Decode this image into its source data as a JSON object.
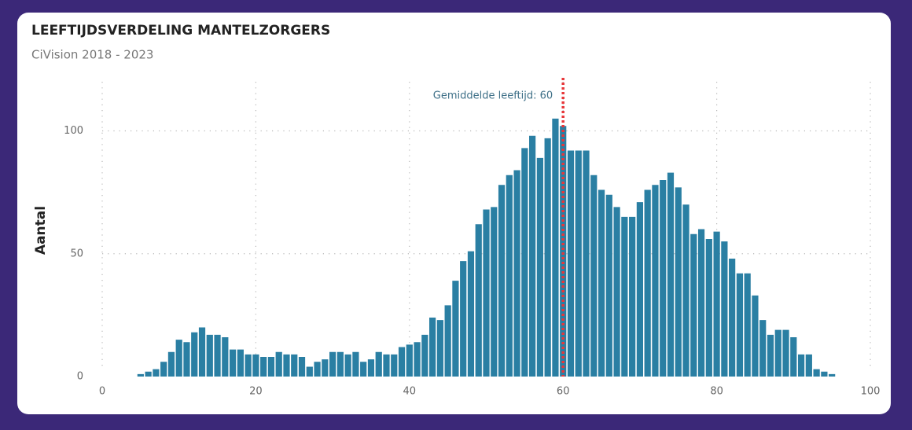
{
  "chart_data": {
    "type": "bar",
    "title": "LEEFTIJDSVERDELING MANTELZORGERS",
    "subtitle": "CiVision 2018 - 2023",
    "y_label": "Aantal",
    "color": "#2a7fa3",
    "x": [
      5,
      6,
      7,
      8,
      9,
      10,
      11,
      12,
      13,
      14,
      15,
      16,
      17,
      18,
      19,
      20,
      21,
      22,
      23,
      24,
      25,
      26,
      27,
      28,
      29,
      30,
      31,
      32,
      33,
      34,
      35,
      36,
      37,
      38,
      39,
      40,
      41,
      42,
      43,
      44,
      45,
      46,
      47,
      48,
      49,
      50,
      51,
      52,
      53,
      54,
      55,
      56,
      57,
      58,
      59,
      60,
      61,
      62,
      63,
      64,
      65,
      66,
      67,
      68,
      69,
      70,
      71,
      72,
      73,
      74,
      75,
      76,
      77,
      78,
      79,
      80,
      81,
      82,
      83,
      84,
      85,
      86,
      87,
      88,
      89,
      90,
      91,
      92,
      93,
      94,
      95
    ],
    "values": [
      1,
      2,
      3,
      6,
      10,
      15,
      14,
      18,
      20,
      17,
      17,
      16,
      11,
      11,
      9,
      9,
      8,
      8,
      10,
      9,
      9,
      8,
      4,
      6,
      7,
      10,
      10,
      9,
      10,
      6,
      7,
      10,
      9,
      9,
      12,
      13,
      14,
      17,
      24,
      23,
      29,
      39,
      47,
      51,
      62,
      68,
      69,
      78,
      82,
      84,
      93,
      98,
      89,
      97,
      105,
      102,
      92,
      92,
      92,
      82,
      76,
      74,
      69,
      65,
      65,
      71,
      76,
      78,
      80,
      83,
      77,
      70,
      58,
      60,
      56,
      59,
      55,
      48,
      42,
      42,
      33,
      23,
      17,
      19,
      19,
      16,
      9,
      9,
      3,
      2,
      1
    ],
    "xlim": [
      0,
      100
    ],
    "xticks": [
      0,
      20,
      40,
      60,
      80,
      100
    ],
    "ylim": [
      0,
      120
    ],
    "yticks": [
      0,
      50,
      100
    ],
    "grid": true,
    "annotation": {
      "x": 60,
      "label": "Gemiddelde leeftijd: 60",
      "color": "#e8373a"
    }
  }
}
